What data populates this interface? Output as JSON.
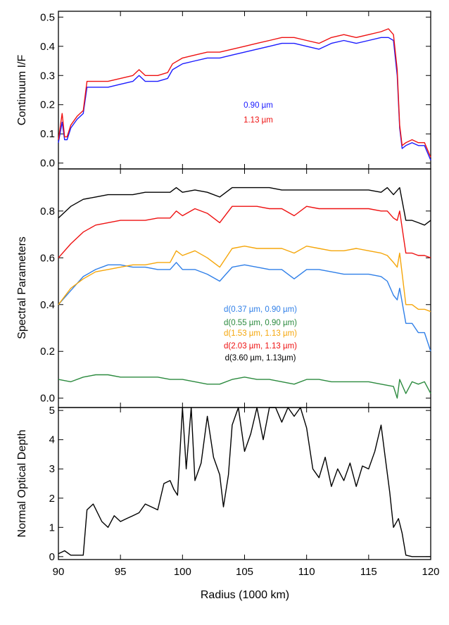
{
  "chart_data": [
    {
      "type": "line",
      "panel": "top",
      "ylabel": "Continuum I/F",
      "xlim": [
        90,
        120
      ],
      "ylim": [
        -0.02,
        0.52
      ],
      "yticks": [
        0.0,
        0.1,
        0.2,
        0.3,
        0.4,
        0.5
      ],
      "ytick_labels": [
        "0.0",
        "0.1",
        "0.2",
        "0.3",
        "0.4",
        "0.5"
      ],
      "legend_placement": "center",
      "series": [
        {
          "name": "0.90 µm",
          "color": "#1a1aff",
          "x": [
            90,
            90.3,
            90.5,
            90.7,
            91,
            91.5,
            92,
            92.3,
            93,
            94,
            95,
            96,
            96.5,
            97,
            98,
            98.8,
            99.2,
            100,
            101,
            102,
            103,
            104,
            105,
            106,
            107,
            108,
            109,
            110,
            111,
            112,
            113,
            114,
            115,
            116,
            116.6,
            117,
            117.3,
            117.5,
            117.7,
            118,
            118.5,
            119,
            119.5,
            120
          ],
          "y": [
            0.07,
            0.14,
            0.08,
            0.08,
            0.12,
            0.15,
            0.17,
            0.26,
            0.26,
            0.26,
            0.27,
            0.28,
            0.3,
            0.28,
            0.28,
            0.29,
            0.32,
            0.34,
            0.35,
            0.36,
            0.36,
            0.37,
            0.38,
            0.39,
            0.4,
            0.41,
            0.41,
            0.4,
            0.39,
            0.41,
            0.42,
            0.41,
            0.42,
            0.43,
            0.43,
            0.42,
            0.3,
            0.12,
            0.05,
            0.06,
            0.07,
            0.06,
            0.06,
            0.01
          ]
        },
        {
          "name": "1.13 µm",
          "color": "#ee1111",
          "x": [
            90,
            90.3,
            90.5,
            90.7,
            91,
            91.5,
            92,
            92.3,
            93,
            94,
            95,
            96,
            96.5,
            97,
            98,
            98.8,
            99.2,
            100,
            101,
            102,
            103,
            104,
            105,
            106,
            107,
            108,
            109,
            110,
            111,
            112,
            113,
            114,
            115,
            116,
            116.6,
            117,
            117.3,
            117.5,
            117.7,
            118,
            118.5,
            119,
            119.5,
            120
          ],
          "y": [
            0.08,
            0.17,
            0.09,
            0.09,
            0.13,
            0.16,
            0.18,
            0.28,
            0.28,
            0.28,
            0.29,
            0.3,
            0.32,
            0.3,
            0.3,
            0.31,
            0.34,
            0.36,
            0.37,
            0.38,
            0.38,
            0.39,
            0.4,
            0.41,
            0.42,
            0.43,
            0.43,
            0.42,
            0.41,
            0.43,
            0.44,
            0.43,
            0.44,
            0.45,
            0.46,
            0.44,
            0.32,
            0.13,
            0.06,
            0.07,
            0.08,
            0.07,
            0.07,
            0.02
          ]
        }
      ]
    },
    {
      "type": "line",
      "panel": "middle",
      "ylabel": "Spectral Parameters",
      "xlim": [
        90,
        120
      ],
      "ylim": [
        -0.04,
        0.98
      ],
      "yticks": [
        0.0,
        0.2,
        0.4,
        0.6,
        0.8
      ],
      "ytick_labels": [
        "0.0",
        "0.2",
        "0.4",
        "0.6",
        "0.8"
      ],
      "legend_placement": "center",
      "series": [
        {
          "name": "d(0.37 µm, 0.90 µm)",
          "color": "#2f7fe8",
          "x": [
            90,
            91,
            92,
            93,
            94,
            95,
            96,
            97,
            98,
            99,
            99.5,
            100,
            101,
            102,
            103,
            104,
            105,
            106,
            107,
            108,
            109,
            110,
            111,
            112,
            113,
            114,
            115,
            116,
            116.5,
            117,
            117.3,
            117.5,
            118,
            118.5,
            119,
            119.5,
            120
          ],
          "y": [
            0.4,
            0.46,
            0.52,
            0.55,
            0.57,
            0.57,
            0.56,
            0.56,
            0.55,
            0.55,
            0.58,
            0.55,
            0.55,
            0.53,
            0.5,
            0.56,
            0.57,
            0.56,
            0.55,
            0.55,
            0.51,
            0.55,
            0.55,
            0.54,
            0.53,
            0.53,
            0.53,
            0.52,
            0.5,
            0.44,
            0.42,
            0.47,
            0.32,
            0.32,
            0.28,
            0.28,
            0.2
          ]
        },
        {
          "name": "d(0.55 µm, 0.90 µm)",
          "color": "#2b8a3e",
          "x": [
            90,
            91,
            92,
            93,
            94,
            95,
            96,
            97,
            98,
            99,
            100,
            101,
            102,
            103,
            104,
            105,
            106,
            107,
            108,
            109,
            110,
            111,
            112,
            113,
            114,
            115,
            116,
            117,
            117.3,
            117.5,
            118,
            118.5,
            119,
            119.5,
            120
          ],
          "y": [
            0.08,
            0.07,
            0.09,
            0.1,
            0.1,
            0.09,
            0.09,
            0.09,
            0.09,
            0.08,
            0.08,
            0.07,
            0.06,
            0.06,
            0.08,
            0.09,
            0.08,
            0.08,
            0.07,
            0.06,
            0.08,
            0.08,
            0.07,
            0.07,
            0.07,
            0.07,
            0.06,
            0.05,
            0.0,
            0.08,
            0.02,
            0.07,
            0.06,
            0.07,
            0.02
          ]
        },
        {
          "name": "d(1.53 µm, 1.13 µm)",
          "color": "#f5a60a",
          "x": [
            90,
            91,
            92,
            93,
            94,
            95,
            96,
            97,
            98,
            99,
            99.5,
            100,
            101,
            102,
            103,
            104,
            105,
            106,
            107,
            108,
            109,
            110,
            111,
            112,
            113,
            114,
            115,
            116,
            116.5,
            117,
            117.3,
            117.5,
            118,
            118.5,
            119,
            119.5,
            120
          ],
          "y": [
            0.4,
            0.47,
            0.51,
            0.54,
            0.55,
            0.56,
            0.57,
            0.57,
            0.58,
            0.58,
            0.63,
            0.61,
            0.63,
            0.6,
            0.56,
            0.64,
            0.65,
            0.64,
            0.64,
            0.64,
            0.62,
            0.65,
            0.64,
            0.63,
            0.63,
            0.64,
            0.63,
            0.62,
            0.61,
            0.58,
            0.56,
            0.62,
            0.4,
            0.4,
            0.38,
            0.38,
            0.37
          ]
        },
        {
          "name": "d(2.03 µm, 1.13 µm)",
          "color": "#ee1111",
          "x": [
            90,
            91,
            92,
            93,
            94,
            95,
            96,
            97,
            98,
            99,
            99.5,
            100,
            101,
            102,
            103,
            104,
            105,
            106,
            107,
            108,
            109,
            110,
            111,
            112,
            113,
            114,
            115,
            116,
            116.5,
            117,
            117.3,
            117.5,
            118,
            118.5,
            119,
            119.5,
            120
          ],
          "y": [
            0.6,
            0.66,
            0.71,
            0.74,
            0.75,
            0.76,
            0.76,
            0.76,
            0.77,
            0.77,
            0.8,
            0.78,
            0.81,
            0.79,
            0.75,
            0.82,
            0.82,
            0.82,
            0.81,
            0.81,
            0.78,
            0.82,
            0.81,
            0.81,
            0.81,
            0.81,
            0.81,
            0.8,
            0.8,
            0.77,
            0.76,
            0.8,
            0.62,
            0.62,
            0.61,
            0.61,
            0.6
          ]
        },
        {
          "name": "d(3.60 µm, 1.13µm)",
          "color": "#000000",
          "x": [
            90,
            91,
            92,
            93,
            94,
            95,
            96,
            97,
            98,
            99,
            99.5,
            100,
            101,
            102,
            103,
            104,
            105,
            106,
            107,
            108,
            109,
            110,
            111,
            112,
            113,
            114,
            115,
            116,
            116.5,
            117,
            117.5,
            118,
            118.5,
            119,
            119.5,
            120
          ],
          "y": [
            0.77,
            0.82,
            0.85,
            0.86,
            0.87,
            0.87,
            0.87,
            0.88,
            0.88,
            0.88,
            0.9,
            0.88,
            0.89,
            0.88,
            0.86,
            0.9,
            0.9,
            0.9,
            0.9,
            0.89,
            0.89,
            0.89,
            0.89,
            0.89,
            0.89,
            0.89,
            0.89,
            0.88,
            0.9,
            0.87,
            0.9,
            0.76,
            0.76,
            0.75,
            0.74,
            0.76
          ]
        }
      ]
    },
    {
      "type": "line",
      "panel": "bottom",
      "ylabel": "Normal Optical Depth",
      "xlabel": "Radius (1000 km)",
      "xlim": [
        90,
        120
      ],
      "ylim": [
        -0.1,
        5.1
      ],
      "xticks": [
        90,
        95,
        100,
        105,
        110,
        115,
        120
      ],
      "xtick_labels": [
        "90",
        "95",
        "100",
        "105",
        "110",
        "115",
        "120"
      ],
      "yticks": [
        0,
        1,
        2,
        3,
        4,
        5
      ],
      "ytick_labels": [
        "0",
        "1",
        "2",
        "3",
        "4",
        "5"
      ],
      "series": [
        {
          "name": "",
          "color": "#000000",
          "x": [
            90,
            90.5,
            91,
            91.5,
            92,
            92.3,
            92.8,
            93.5,
            94,
            94.5,
            95,
            95.5,
            96,
            96.5,
            97,
            98,
            98.5,
            99,
            99.3,
            99.6,
            100,
            100.3,
            100.7,
            101,
            101.5,
            102,
            102.5,
            103,
            103.3,
            103.7,
            104,
            104.5,
            105,
            105.5,
            106,
            106.5,
            107,
            107.5,
            108,
            108.5,
            109,
            109.5,
            110,
            110.5,
            111,
            111.5,
            112,
            112.5,
            113,
            113.5,
            114,
            114.5,
            115,
            115.5,
            116,
            116.3,
            116.7,
            117,
            117.4,
            117.7,
            118,
            118.5,
            119,
            119.5,
            120
          ],
          "y": [
            0.1,
            0.2,
            0.05,
            0.05,
            0.05,
            1.6,
            1.8,
            1.2,
            1.0,
            1.4,
            1.2,
            1.3,
            1.4,
            1.5,
            1.8,
            1.6,
            2.5,
            2.6,
            2.3,
            2.1,
            5.1,
            3.0,
            5.1,
            2.6,
            3.2,
            4.8,
            3.4,
            2.8,
            1.7,
            2.8,
            4.5,
            5.1,
            3.6,
            4.2,
            5.1,
            4.0,
            5.1,
            5.1,
            4.6,
            5.1,
            4.8,
            5.1,
            4.4,
            3.0,
            2.7,
            3.4,
            2.4,
            3.0,
            2.6,
            3.2,
            2.4,
            3.1,
            3.0,
            3.6,
            4.5,
            3.5,
            2.2,
            1.0,
            1.3,
            0.8,
            0.05,
            0.0,
            0.0,
            0.0,
            0.0
          ]
        }
      ]
    }
  ],
  "legend_top": [
    "0.90 µm",
    "1.13 µm"
  ],
  "legend_middle": [
    "d(0.37 µm, 0.90 µm)",
    "d(0.55 µm, 0.90 µm)",
    "d(1.53 µm, 1.13 µm)",
    "d(2.03 µm, 1.13 µm)",
    "d(3.60 µm, 1.13µm)"
  ],
  "axis_labels": {
    "top_y": "Continuum I/F",
    "middle_y": "Spectral Parameters",
    "bottom_y": "Normal Optical Depth",
    "x": "Radius (1000 km)"
  },
  "colors": {
    "blue": "#1a1aff",
    "red": "#ee1111",
    "light_blue": "#2f7fe8",
    "green": "#2b8a3e",
    "orange": "#f5a60a",
    "black": "#000000"
  }
}
